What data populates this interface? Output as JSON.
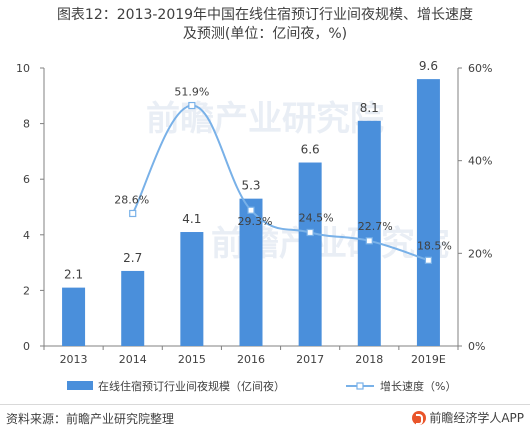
{
  "title": {
    "line1": "图表12：2013-2019年中国在线住宿预订行业间夜规模、增长速度",
    "line2": "及预测(单位：亿间夜，%)"
  },
  "chart_data": {
    "type": "bar",
    "categories": [
      "2013",
      "2014",
      "2015",
      "2016",
      "2017",
      "2018",
      "2019E"
    ],
    "series": [
      {
        "name": "在线住宿预订行业间夜规模（亿间夜）",
        "kind": "bar",
        "axis": "left",
        "values": [
          2.1,
          2.7,
          4.1,
          5.3,
          6.6,
          8.1,
          9.6
        ],
        "labels": [
          "2.1",
          "2.7",
          "4.1",
          "5.3",
          "6.6",
          "8.1",
          "9.6"
        ],
        "color": "#4a8fdb"
      },
      {
        "name": "增长速度（%）",
        "kind": "line",
        "axis": "right",
        "values": [
          null,
          28.6,
          51.9,
          29.3,
          24.5,
          22.7,
          18.5
        ],
        "labels": [
          "",
          "28.6%",
          "51.9%",
          "29.3%",
          "24.5%",
          "22.7%",
          "18.5%"
        ],
        "color": "#79b1e8"
      }
    ],
    "ylim_left": [
      0,
      10
    ],
    "yticks_left": [
      "0",
      "2",
      "4",
      "6",
      "8",
      "10"
    ],
    "ylim_right": [
      0,
      60
    ],
    "yticks_right": [
      "0%",
      "20%",
      "40%",
      "60%"
    ],
    "grid": false,
    "legend_position": "bottom"
  },
  "watermark": "前瞻产业研究院",
  "footer": {
    "source": "资料来源：前瞻产业研究院整理",
    "brand": "前瞻经济学人APP"
  }
}
